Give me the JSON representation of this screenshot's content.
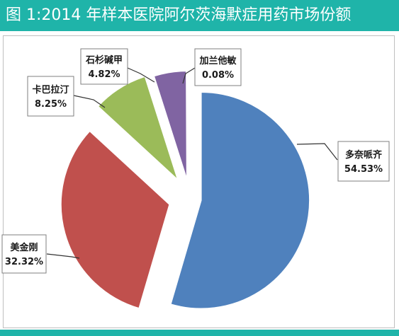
{
  "title": "图 1:2014 年样本医院阿尔茨海默症用药市场份额",
  "colors": {
    "header": "#1fb4a9",
    "blue": "#4f81bd",
    "red": "#c0504d",
    "green": "#9bbb59",
    "purple": "#8064a2",
    "lightblue": "#4bacc6"
  },
  "chart_data": {
    "type": "pie",
    "title": "图 1:2014 年样本医院阿尔茨海默症用药市场份额",
    "slices": [
      {
        "name": "多奈哌齐",
        "value": 54.53,
        "label": "54.53%",
        "color": "#4f81bd"
      },
      {
        "name": "美金刚",
        "value": 32.32,
        "label": "32.32%",
        "color": "#c0504d"
      },
      {
        "name": "卡巴拉汀",
        "value": 8.25,
        "label": "8.25%",
        "color": "#9bbb59"
      },
      {
        "name": "石杉碱甲",
        "value": 4.82,
        "label": "4.82%",
        "color": "#8064a2"
      },
      {
        "name": "加兰他敏",
        "value": 0.08,
        "label": "0.08%",
        "color": "#4bacc6"
      }
    ],
    "exploded": true,
    "legend": "none"
  }
}
